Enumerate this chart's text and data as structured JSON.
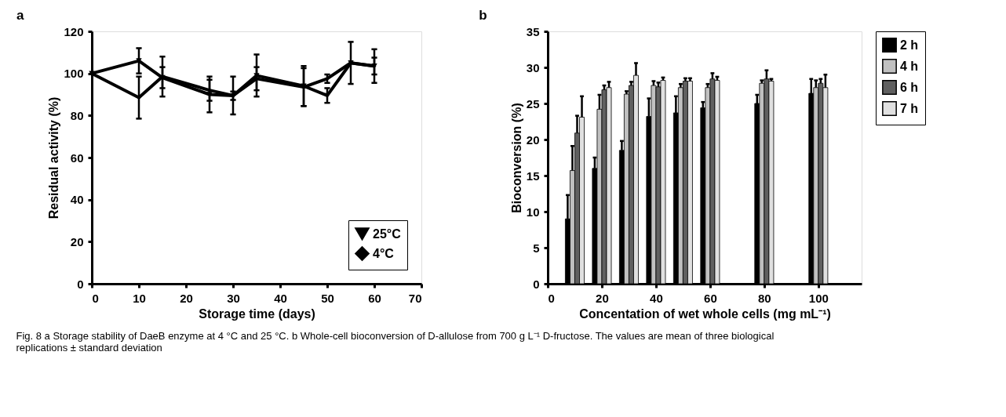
{
  "chart_data": [
    {
      "type": "line",
      "title": "a",
      "xlabel": "Storage time (days)",
      "ylabel": "Residual activity (%)",
      "x": [
        0,
        10,
        15,
        25,
        30,
        35,
        45,
        50,
        55,
        60
      ],
      "series": [
        {
          "name": "25°C",
          "color": "#000000",
          "marker": "triangle",
          "values": [
            100,
            106,
            98,
            90,
            89.4,
            99,
            94,
            89.5,
            105,
            103.5
          ],
          "errors": [
            null,
            6,
            5,
            8.5,
            2,
            10,
            9.5,
            3.5,
            10,
            8
          ]
        },
        {
          "name": "4°C",
          "color": "#000000",
          "marker": "diamond",
          "values": [
            100,
            88.5,
            98.5,
            92,
            89.5,
            97.5,
            93.5,
            97.5,
            105,
            103.5
          ],
          "errors": [
            null,
            10,
            9.5,
            5,
            9,
            5.5,
            9,
            2,
            null,
            4
          ]
        }
      ],
      "xlim": [
        0,
        70
      ],
      "xticks": [
        0,
        10,
        20,
        30,
        40,
        50,
        60,
        70
      ],
      "ylim": [
        0,
        120
      ],
      "yticks": [
        0,
        20,
        40,
        60,
        80,
        100,
        120
      ],
      "legend": "bottom right",
      "grid": false,
      "annotations": [
        "Fig. 8 a Storage stability of DaeB enzyme at 4 °C and 25 °C. b Whole-cell bioconversion of D-allulose from 700 g L⁻¹ D-fructose. The values are mean of three biological replications ± standard deviation"
      ]
    },
    {
      "type": "bar",
      "title": "b",
      "xlabel": "Concentation of wet whole cells (mg mL⁻¹)",
      "ylabel": "Bioconversion (%)",
      "x": [
        10,
        20,
        30,
        40,
        50,
        60,
        80,
        100
      ],
      "series": [
        {
          "name": "2 h",
          "color": "#000000",
          "values": [
            9.0,
            16.0,
            18.5,
            23.2,
            23.7,
            24.4,
            25.0,
            26.4
          ],
          "errors": [
            [
              9.0,
              12.3
            ],
            [
              16.0,
              17.5
            ],
            [
              18.5,
              19.8
            ],
            [
              23.2,
              25.7
            ],
            [
              23.7,
              26.0
            ],
            [
              24.4,
              25.2
            ],
            [
              25.0,
              26.2
            ],
            [
              26.4,
              28.4
            ]
          ]
        },
        {
          "name": "4 h",
          "color": "#c0c0c0",
          "values": [
            15.7,
            24.2,
            26.3,
            27.5,
            27.2,
            27.2,
            27.8,
            27.2
          ],
          "errors": [
            [
              15.7,
              19.1
            ],
            [
              24.2,
              26.2
            ],
            [
              26.3,
              26.7
            ],
            [
              27.5,
              28.1
            ],
            [
              27.2,
              27.7
            ],
            [
              27.2,
              27.7
            ],
            [
              27.8,
              28.2
            ],
            [
              27.2,
              28.2
            ]
          ]
        },
        {
          "name": "6 h",
          "color": "#606060",
          "values": [
            20.9,
            26.9,
            27.5,
            27.3,
            28.1,
            28.4,
            28.4,
            27.8
          ],
          "errors": [
            [
              20.9,
              23.3
            ],
            [
              26.9,
              27.5
            ],
            [
              27.5,
              28.0
            ],
            [
              27.3,
              27.9
            ],
            [
              28.1,
              28.5
            ],
            [
              28.4,
              29.2
            ],
            [
              28.4,
              29.6
            ],
            [
              27.8,
              28.4
            ]
          ]
        },
        {
          "name": "7 h",
          "color": "#e0e0e0",
          "values": [
            23.1,
            27.2,
            28.9,
            28.2,
            28.1,
            28.2,
            28.1,
            27.2
          ],
          "errors": [
            [
              23.1,
              26.0
            ],
            [
              27.2,
              28.0
            ],
            [
              28.9,
              30.6
            ],
            [
              28.2,
              28.6
            ],
            [
              28.1,
              28.5
            ],
            [
              28.2,
              28.7
            ],
            [
              28.1,
              28.4
            ],
            [
              27.2,
              29.0
            ]
          ]
        }
      ],
      "xlim": [
        0,
        116
      ],
      "xticks": [
        0,
        20,
        40,
        60,
        80,
        100
      ],
      "ylim": [
        0,
        35
      ],
      "yticks": [
        0,
        5,
        10,
        15,
        20,
        25,
        30,
        35
      ],
      "legend": "right",
      "grid": false
    }
  ]
}
